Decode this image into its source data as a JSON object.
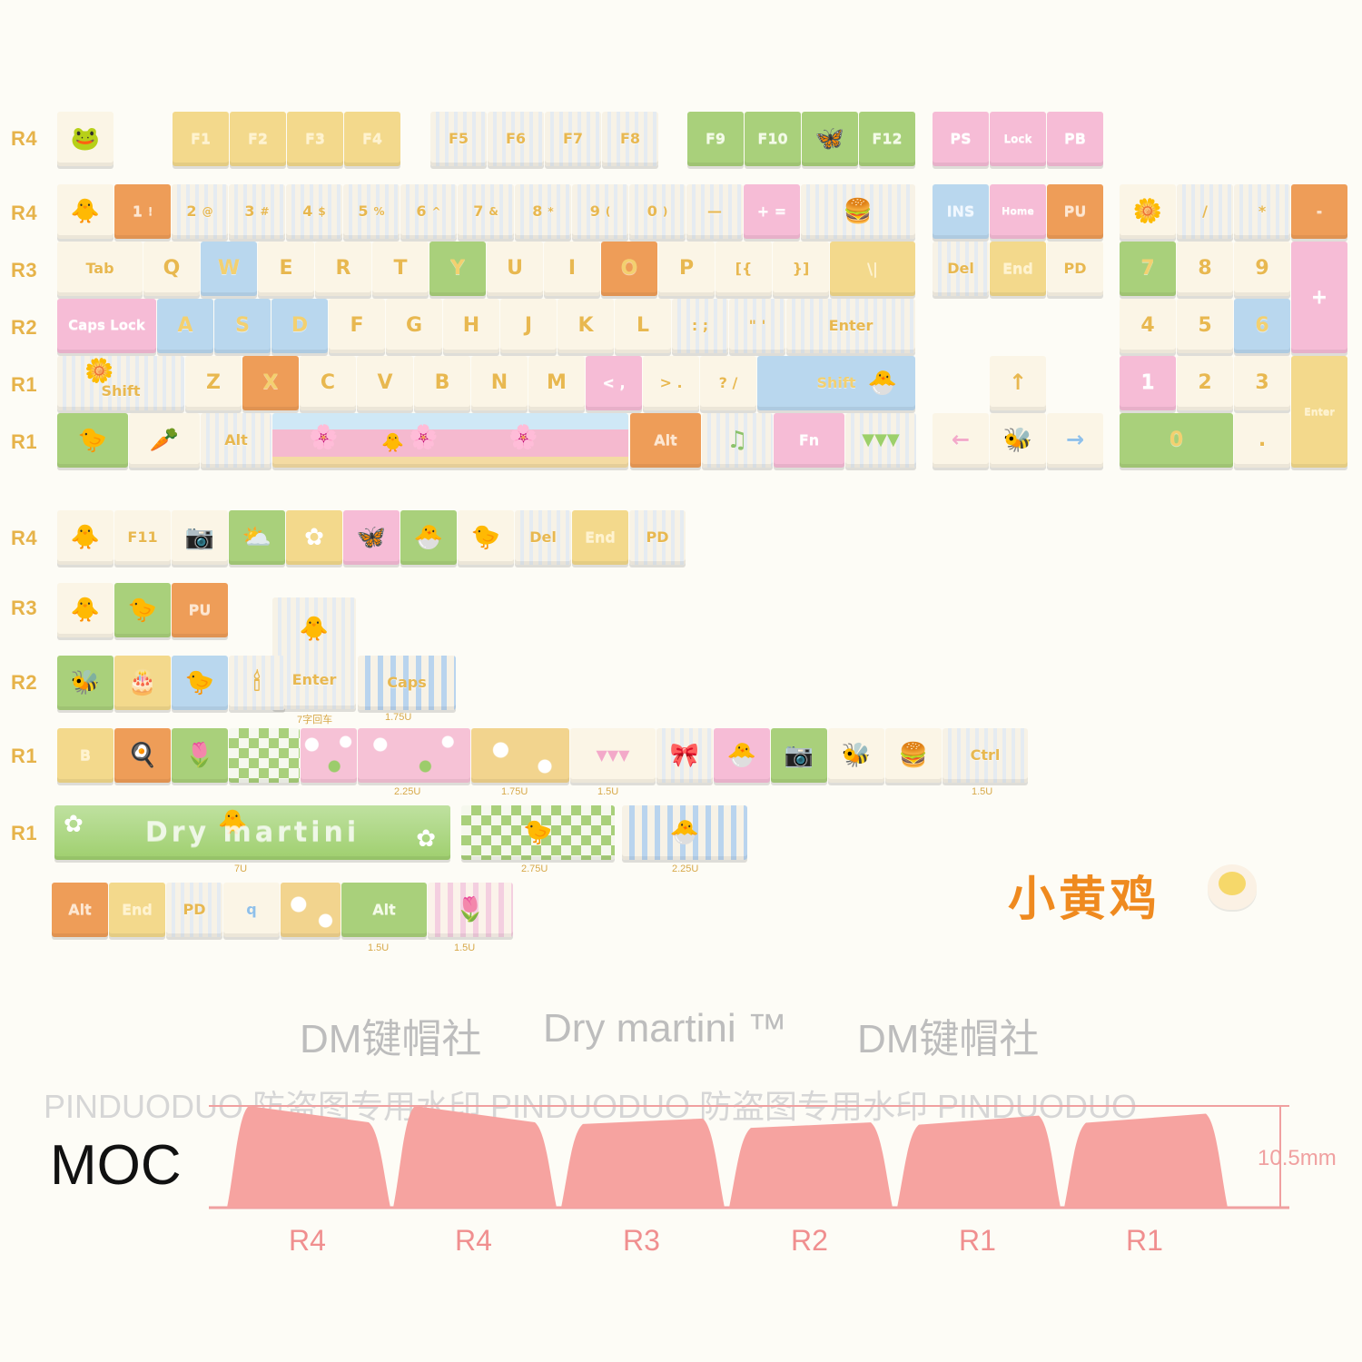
{
  "rows_main": [
    "R4",
    "R4",
    "R3",
    "R2",
    "R1",
    "R1"
  ],
  "rows_extra": [
    "R4",
    "R3",
    "R2",
    "R1",
    "R1"
  ],
  "keys": {
    "f1": "F1",
    "f2": "F2",
    "f3": "F3",
    "f4": "F4",
    "f5": "F5",
    "f6": "F6",
    "f7": "F7",
    "f8": "F8",
    "f9": "F9",
    "f10": "F10",
    "f11": "F11",
    "f12": "F12",
    "ps": "PS",
    "lock": "Lock",
    "pb": "PB",
    "n1": "1",
    "n1s": "!",
    "n2": "2",
    "n2s": "@",
    "n3": "3",
    "n3s": "#",
    "n4": "4",
    "n4s": "$",
    "n5": "5",
    "n5s": "%",
    "n6": "6",
    "n6s": "^",
    "n7": "7",
    "n7s": "&",
    "n8": "8",
    "n8s": "*",
    "n9": "9",
    "n9s": "(",
    "n0": "0",
    "n0s": ")",
    "minus": "—",
    "plus": "+ =",
    "ins": "INS",
    "home": "Home",
    "pu": "PU",
    "tab": "Tab",
    "q": "Q",
    "w": "W",
    "e": "E",
    "r": "R",
    "t": "T",
    "y": "Y",
    "u": "U",
    "i": "I",
    "o": "O",
    "p": "P",
    "lbr": "[{",
    "rbr": "}]",
    "bsl": "\\|",
    "del": "Del",
    "end": "End",
    "pd": "PD",
    "caps": "Caps Lock",
    "a": "A",
    "s": "S",
    "d": "D",
    "f": "F",
    "g": "G",
    "h": "H",
    "j": "J",
    "k": "K",
    "l": "L",
    "semi": ": ;",
    "quote": "\" '",
    "enter": "Enter",
    "shift": "Shift",
    "z": "Z",
    "x": "X",
    "c": "C",
    "v": "V",
    "b": "B",
    "n": "N",
    "m": "M",
    "comma": "< ,",
    "dot": "> .",
    "slash": "? /",
    "rshift": "Shift",
    "alt": "Alt",
    "ralt": "Alt",
    "fn": "Fn",
    "np_slash": "/",
    "np_star": "*",
    "np_minus": "-",
    "np7": "7",
    "np8": "8",
    "np9": "9",
    "np_plus": "+",
    "np4": "4",
    "np5": "5",
    "np6": "6",
    "np1": "1",
    "np2": "2",
    "np3": "3",
    "np_enter": "Enter",
    "np0": "0",
    "np_dot": ".",
    "up": "↑",
    "left": "←",
    "right": "→",
    "x_f11": "F11",
    "x_del": "Del",
    "x_end": "End",
    "x_pd": "PD",
    "x_pu": "PU",
    "x_enter": "Enter",
    "x_caps": "Caps",
    "x_ctrl": "Ctrl",
    "x_alt1": "Alt",
    "x_end2": "End",
    "x_pd2": "PD",
    "x_alt2": "Alt",
    "x_ctrl_b": "B",
    "x_q": "q"
  },
  "size_labels": {
    "enter7": "7字回车",
    "caps175": "1.75U",
    "s225": "2.25U",
    "s175": "1.75U",
    "s15": "1.5U",
    "ctrl15": "1.5U",
    "space7": "7U",
    "s275": "2.75U",
    "s225b": "2.25U",
    "alt15a": "1.5U",
    "alt15b": "1.5U"
  },
  "title_cn": "小黄鸡",
  "spacebar_text": "Dry martini",
  "brand_line": {
    "left": "DM键帽社",
    "center": "Dry martini ™",
    "right": "DM键帽社"
  },
  "watermark": "PINDUODUO 防盗图专用水印 PINDUODUO 防盗图专用水印 PINDUODUO",
  "profile": {
    "name": "MOC",
    "dimension": "10.5mm",
    "labels": [
      "R4",
      "R4",
      "R3",
      "R2",
      "R1",
      "R1"
    ],
    "heights": [
      10.5,
      10.5,
      9.2,
      8.8,
      9.5,
      9.7
    ],
    "color": "#f6a3a0"
  }
}
